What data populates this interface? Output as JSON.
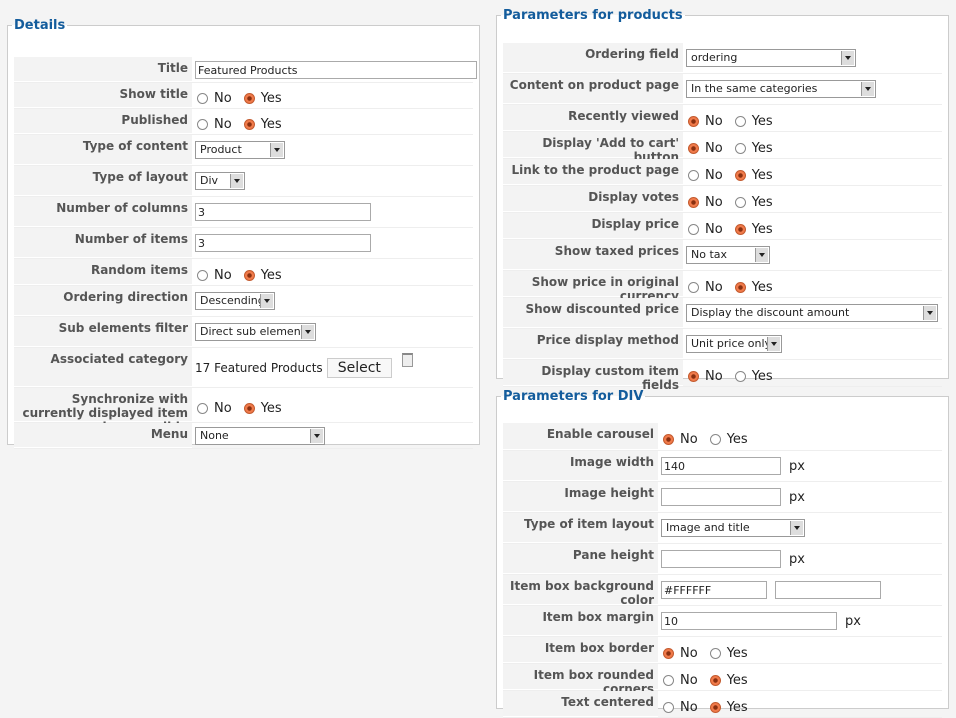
{
  "details": {
    "legend": "Details",
    "fields": [
      {
        "label": "Title",
        "kind": "text",
        "value": "Featured Products"
      },
      {
        "label": "Show title",
        "kind": "radio",
        "options": [
          "No",
          "Yes"
        ],
        "selected": 1
      },
      {
        "label": "Published",
        "kind": "radio",
        "options": [
          "No",
          "Yes"
        ],
        "selected": 1
      },
      {
        "label": "Type of content",
        "kind": "select",
        "value": "Product"
      },
      {
        "label": "Type of layout",
        "kind": "select",
        "value": "Div"
      },
      {
        "label": "Number of columns",
        "kind": "text",
        "value": "3"
      },
      {
        "label": "Number of items",
        "kind": "text",
        "value": "3"
      },
      {
        "label": "Random items",
        "kind": "radio",
        "options": [
          "No",
          "Yes"
        ],
        "selected": 1
      },
      {
        "label": "Ordering direction",
        "kind": "select",
        "value": "Descending"
      },
      {
        "label": "Sub elements filter",
        "kind": "select",
        "value": "Direct sub elements"
      },
      {
        "label": "Associated category",
        "kind": "category",
        "value": "17 Featured Products",
        "button": "Select"
      },
      {
        "label": "Synchronize with currently displayed item when possible",
        "kind": "radio",
        "options": [
          "No",
          "Yes"
        ],
        "selected": 1
      },
      {
        "label": "Menu",
        "kind": "select",
        "value": "None"
      }
    ]
  },
  "products": {
    "legend": "Parameters for products",
    "fields": [
      {
        "label": "Ordering field",
        "kind": "select",
        "value": "ordering"
      },
      {
        "label": "Content on product page",
        "kind": "select",
        "value": "In the same categories"
      },
      {
        "label": "Recently viewed",
        "kind": "radio",
        "options": [
          "No",
          "Yes"
        ],
        "selected": 0
      },
      {
        "label": "Display 'Add to cart' button",
        "kind": "radio",
        "options": [
          "No",
          "Yes"
        ],
        "selected": 0
      },
      {
        "label": "Link to the product page",
        "kind": "radio",
        "options": [
          "No",
          "Yes"
        ],
        "selected": 1
      },
      {
        "label": "Display votes",
        "kind": "radio",
        "options": [
          "No",
          "Yes"
        ],
        "selected": 0
      },
      {
        "label": "Display price",
        "kind": "radio",
        "options": [
          "No",
          "Yes"
        ],
        "selected": 1
      },
      {
        "label": "Show taxed prices",
        "kind": "select",
        "value": "No tax"
      },
      {
        "label": "Show price in original currency",
        "kind": "radio",
        "options": [
          "No",
          "Yes"
        ],
        "selected": 1
      },
      {
        "label": "Show discounted price",
        "kind": "select",
        "value": "Display the discount amount"
      },
      {
        "label": "Price display method",
        "kind": "select",
        "value": "Unit price only"
      },
      {
        "label": "Display custom item fields",
        "kind": "radio",
        "options": [
          "No",
          "Yes"
        ],
        "selected": 0
      }
    ]
  },
  "div": {
    "legend": "Parameters for DIV",
    "fields": [
      {
        "label": "Enable carousel",
        "kind": "radio",
        "options": [
          "No",
          "Yes"
        ],
        "selected": 0
      },
      {
        "label": "Image width",
        "kind": "text",
        "value": "140",
        "unit": "px"
      },
      {
        "label": "Image height",
        "kind": "text",
        "unit": "px"
      },
      {
        "label": "Type of item layout",
        "kind": "select",
        "value": "Image and title"
      },
      {
        "label": "Pane height",
        "kind": "text",
        "unit": "px"
      },
      {
        "label": "Item box background color",
        "kind": "color",
        "value": "#FFFFFF"
      },
      {
        "label": "Item box margin",
        "kind": "text",
        "value": "10",
        "unit": "px"
      },
      {
        "label": "Item box border",
        "kind": "radio",
        "options": [
          "No",
          "Yes"
        ],
        "selected": 0
      },
      {
        "label": "Item box rounded corners",
        "kind": "radio",
        "options": [
          "No",
          "Yes"
        ],
        "selected": 1
      },
      {
        "label": "Text centered",
        "kind": "radio",
        "options": [
          "No",
          "Yes"
        ],
        "selected": 1
      }
    ]
  }
}
